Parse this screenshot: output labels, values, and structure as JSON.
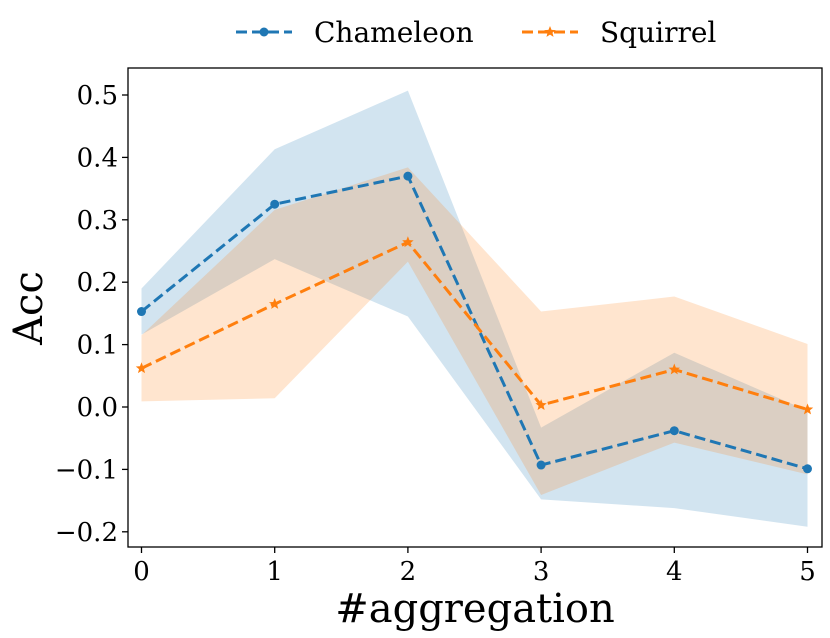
{
  "chart_data": {
    "type": "line",
    "title": "",
    "xlabel": "#aggregation",
    "ylabel": "Acc",
    "x": [
      0,
      1,
      2,
      3,
      4,
      5
    ],
    "xlim": [
      -0.1,
      5.1
    ],
    "ylim": [
      -0.225,
      0.545
    ],
    "xticks": [
      0,
      1,
      2,
      3,
      4,
      5
    ],
    "xtick_labels": [
      "0",
      "1",
      "2",
      "3",
      "4",
      "5"
    ],
    "yticks": [
      -0.2,
      -0.1,
      0.0,
      0.1,
      0.2,
      0.3,
      0.4,
      0.5
    ],
    "ytick_labels": [
      "−0.2",
      "−0.1",
      "0.0",
      "0.1",
      "0.2",
      "0.3",
      "0.4",
      "0.5"
    ],
    "grid": false,
    "legend_position": "top-center",
    "series": [
      {
        "name": "Chameleon",
        "color": "#1f77b4",
        "marker": "circle",
        "linestyle": "dashed",
        "values": [
          0.153,
          0.325,
          0.37,
          -0.093,
          -0.038,
          -0.099
        ],
        "band_lower": [
          0.116,
          0.237,
          0.145,
          -0.148,
          -0.162,
          -0.192
        ],
        "band_upper": [
          0.19,
          0.413,
          0.507,
          -0.033,
          0.087,
          -0.006
        ]
      },
      {
        "name": "Squirrel",
        "color": "#ff7f0e",
        "marker": "star",
        "linestyle": "dashed",
        "values": [
          0.062,
          0.165,
          0.264,
          0.003,
          0.06,
          -0.004
        ],
        "band_lower": [
          0.009,
          0.014,
          0.233,
          -0.141,
          -0.057,
          -0.108
        ],
        "band_upper": [
          0.115,
          0.316,
          0.384,
          0.153,
          0.177,
          0.101
        ]
      }
    ]
  }
}
